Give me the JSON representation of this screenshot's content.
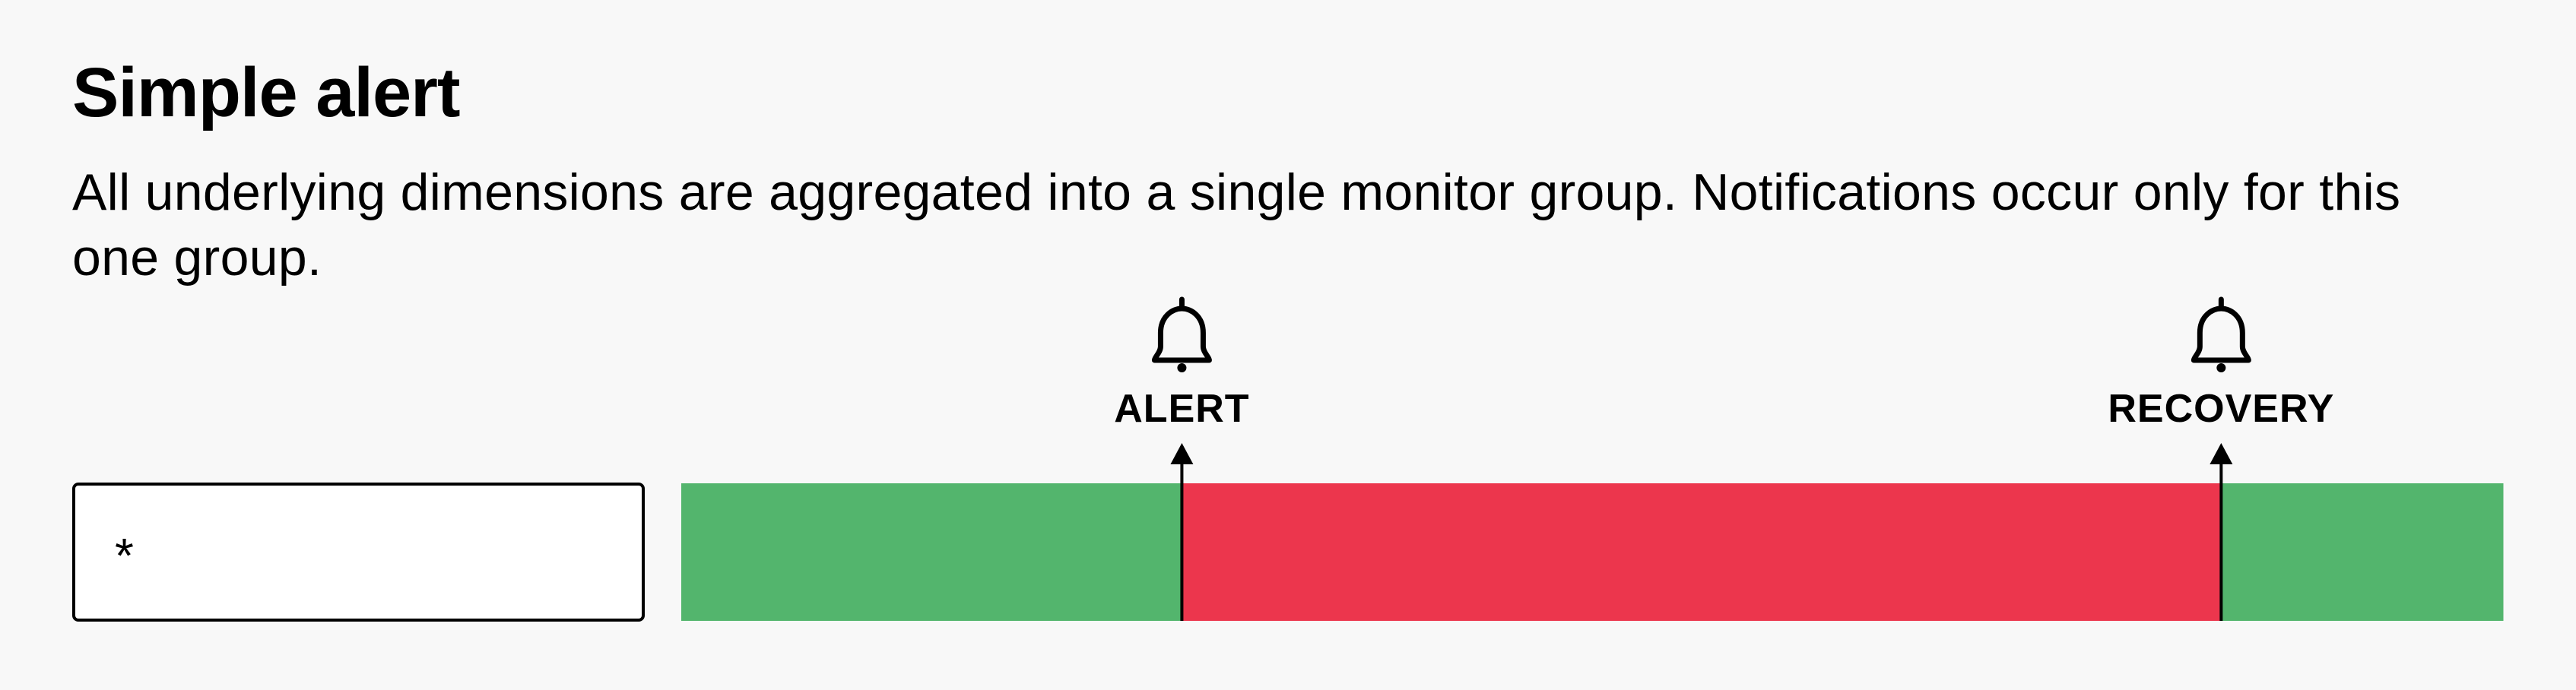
{
  "header": {
    "title": "Simple alert",
    "description": "All underlying dimensions are aggregated into a single monitor group. Notifications occur only for this one group."
  },
  "group": {
    "label": "*"
  },
  "timeline": {
    "segments": [
      {
        "state": "ok",
        "start": 0.0,
        "end": 0.2748
      },
      {
        "state": "alert",
        "start": 0.2748,
        "end": 0.8453
      },
      {
        "state": "ok",
        "start": 0.8453,
        "end": 1.0
      }
    ],
    "markers": [
      {
        "label": "ALERT",
        "at": 0.2748,
        "icon": "bell-icon"
      },
      {
        "label": "RECOVERY",
        "at": 0.8453,
        "icon": "bell-icon"
      }
    ],
    "colors": {
      "ok": "#53b56d",
      "alert": "#ec364d",
      "line": "#000000"
    }
  }
}
